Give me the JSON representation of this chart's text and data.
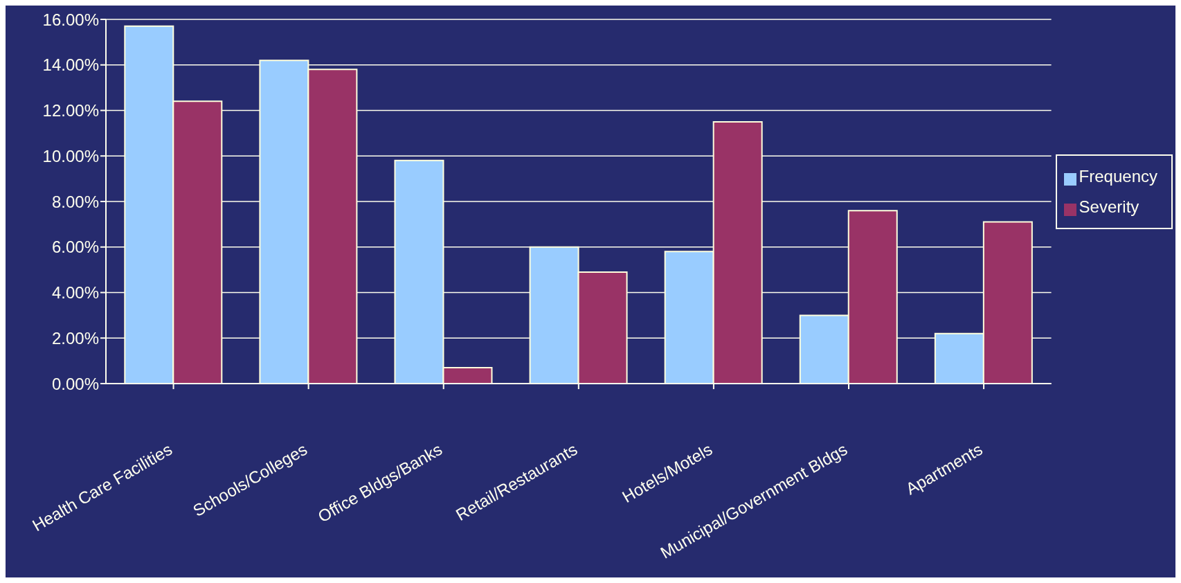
{
  "chart_data": {
    "type": "bar",
    "categories": [
      "Health Care Facilities",
      "Schools/Colleges",
      "Office Bldgs/Banks",
      "Retail/Restaurants",
      "Hotels/Motels",
      "Municipal/Government Bldgs",
      "Apartments"
    ],
    "series": [
      {
        "name": "Frequency",
        "color": "#99ccff",
        "values": [
          15.7,
          14.2,
          9.8,
          6.0,
          5.8,
          3.0,
          2.2
        ]
      },
      {
        "name": "Severity",
        "color": "#993366",
        "values": [
          12.4,
          13.8,
          0.7,
          4.9,
          11.5,
          7.6,
          7.1
        ]
      }
    ],
    "ylim": [
      0,
      16
    ],
    "yticks": [
      {
        "value": 0,
        "label": "0.00%"
      },
      {
        "value": 2,
        "label": "2.00%"
      },
      {
        "value": 4,
        "label": "4.00%"
      },
      {
        "value": 6,
        "label": "6.00%"
      },
      {
        "value": 8,
        "label": "8.00%"
      },
      {
        "value": 10,
        "label": "10.00%"
      },
      {
        "value": 12,
        "label": "12.00%"
      },
      {
        "value": 14,
        "label": "14.00%"
      },
      {
        "value": 16,
        "label": "16.00%"
      }
    ],
    "grid": "y",
    "legend": "right"
  }
}
